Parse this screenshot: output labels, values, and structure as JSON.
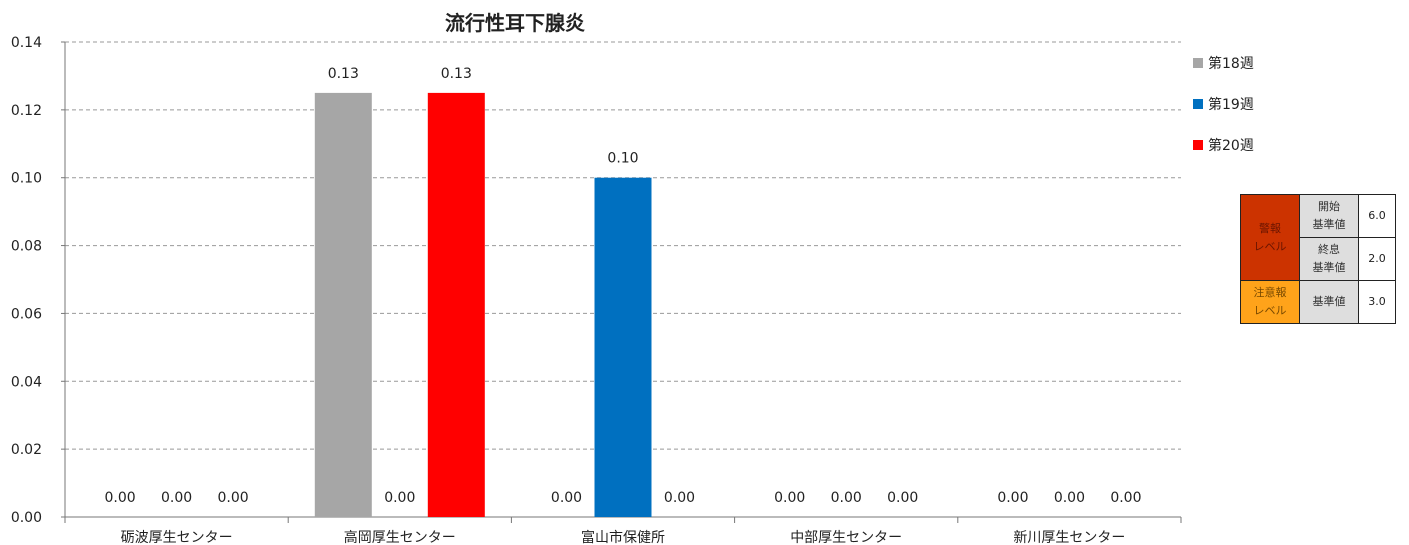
{
  "chart_data": {
    "type": "bar",
    "title": "流行性耳下腺炎",
    "categories": [
      "砺波厚生センター",
      "高岡厚生センター",
      "富山市保健所",
      "中部厚生センター",
      "新川厚生センター"
    ],
    "series": [
      {
        "name": "第18週",
        "color": "#a6a6a6",
        "values": [
          0.0,
          0.125,
          0.0,
          0.0,
          0.0
        ],
        "labels": [
          "0.00",
          "0.13",
          "0.00",
          "0.00",
          "0.00"
        ]
      },
      {
        "name": "第19週",
        "color": "#0070c0",
        "values": [
          0.0,
          0.0,
          0.1,
          0.0,
          0.0
        ],
        "labels": [
          "0.00",
          "0.00",
          "0.10",
          "0.00",
          "0.00"
        ]
      },
      {
        "name": "第20週",
        "color": "#ff0000",
        "values": [
          0.0,
          0.125,
          0.0,
          0.0,
          0.0
        ],
        "labels": [
          "0.00",
          "0.13",
          "0.00",
          "0.00",
          "0.00"
        ]
      }
    ],
    "ylim": [
      0,
      0.14
    ],
    "yticks": [
      "0.00",
      "0.02",
      "0.04",
      "0.06",
      "0.08",
      "0.10",
      "0.12",
      "0.14"
    ],
    "grid": true,
    "legend_position": "right"
  },
  "level_table": {
    "warning_label": "警報\nレベル",
    "start_label": "開始\n基準値",
    "start_value": "6.0",
    "end_label": "終息\n基準値",
    "end_value": "2.0",
    "caution_label": "注意報\nレベル",
    "caution_criterion_label": "基準値",
    "caution_value": "3.0"
  }
}
